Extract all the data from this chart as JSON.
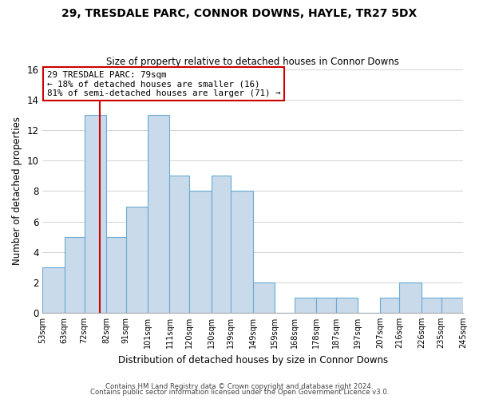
{
  "title": "29, TRESDALE PARC, CONNOR DOWNS, HAYLE, TR27 5DX",
  "subtitle": "Size of property relative to detached houses in Connor Downs",
  "xlabel": "Distribution of detached houses by size in Connor Downs",
  "ylabel": "Number of detached properties",
  "bin_edges": [
    53,
    63,
    72,
    82,
    91,
    101,
    111,
    120,
    130,
    139,
    149,
    159,
    168,
    178,
    187,
    197,
    207,
    216,
    226,
    235,
    245
  ],
  "counts": [
    3,
    5,
    13,
    5,
    7,
    13,
    9,
    8,
    9,
    8,
    2,
    0,
    1,
    1,
    1,
    0,
    1,
    2,
    1,
    1
  ],
  "bar_color": "#c9daea",
  "bar_edge_color": "#6aaad4",
  "property_line_x": 79,
  "property_line_color": "#cc0000",
  "annotation_line1": "29 TRESDALE PARC: 79sqm",
  "annotation_line2": "← 18% of detached houses are smaller (16)",
  "annotation_line3": "81% of semi-detached houses are larger (71) →",
  "annotation_box_edge_color": "#cc0000",
  "ylim": [
    0,
    16
  ],
  "yticks": [
    0,
    2,
    4,
    6,
    8,
    10,
    12,
    14,
    16
  ],
  "footer_line1": "Contains HM Land Registry data © Crown copyright and database right 2024.",
  "footer_line2": "Contains public sector information licensed under the Open Government Licence v3.0.",
  "tick_labels": [
    "53sqm",
    "63sqm",
    "72sqm",
    "82sqm",
    "91sqm",
    "101sqm",
    "111sqm",
    "120sqm",
    "130sqm",
    "139sqm",
    "149sqm",
    "159sqm",
    "168sqm",
    "178sqm",
    "187sqm",
    "197sqm",
    "207sqm",
    "216sqm",
    "226sqm",
    "235sqm",
    "245sqm"
  ],
  "figsize": [
    6.0,
    5.0
  ],
  "dpi": 100
}
